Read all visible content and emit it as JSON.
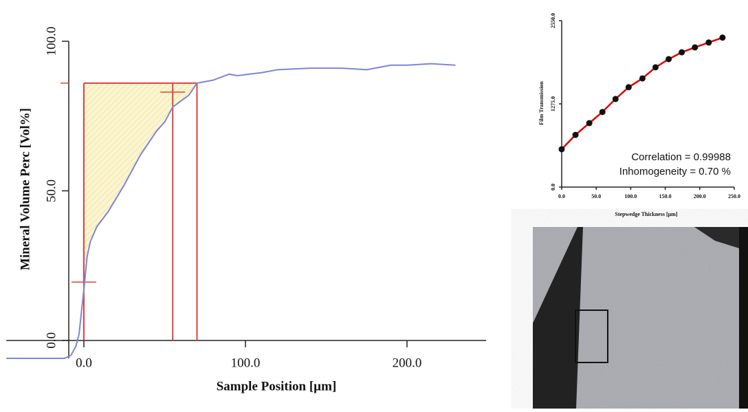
{
  "chart_data": [
    {
      "type": "line",
      "xlabel": "Sample Position [µm]",
      "ylabel": "Mineral Volume Perc [Vol%]",
      "xlim": [
        -48,
        249
      ],
      "ylim": [
        -6,
        100
      ],
      "xticks": [
        {
          "value": 0,
          "label": "0.0"
        },
        {
          "value": 100,
          "label": "100.0"
        },
        {
          "value": 200,
          "label": "200.0"
        }
      ],
      "yticks": [
        {
          "value": 0,
          "label": "0.0"
        },
        {
          "value": 50,
          "label": "50.0"
        },
        {
          "value": 100,
          "label": "100.0"
        }
      ],
      "series": [
        {
          "color": "#7b86d6",
          "x": [
            -48,
            -12,
            -8,
            -5,
            -3,
            0,
            2,
            4,
            8,
            15,
            25,
            35,
            45,
            50,
            55,
            60,
            65,
            70,
            80,
            90,
            95,
            110,
            120,
            140,
            160,
            175,
            190,
            200,
            215,
            230
          ],
          "values": [
            -6,
            -6,
            -5,
            -2,
            2,
            17,
            28,
            33,
            38,
            43,
            52,
            62,
            70,
            73,
            78,
            80,
            82,
            86,
            87,
            89,
            88.5,
            89.5,
            90.5,
            91,
            91,
            90.5,
            92,
            92,
            92.5,
            92
          ]
        }
      ],
      "reference_level": 86,
      "reference_x": [
        0,
        55,
        70
      ],
      "reference_color": "#e04040",
      "shade_color": "#f7eeb0",
      "markers": [
        {
          "x": 0,
          "y": 19.5
        },
        {
          "x": 55,
          "y": 83
        }
      ]
    },
    {
      "type": "scatter",
      "xlabel": "Stepwedge Thickness [µm]",
      "ylabel": "Film Transmission",
      "xlim": [
        0,
        250
      ],
      "ylim": [
        0,
        2550
      ],
      "xticks": [
        {
          "value": 0,
          "label": "0.0"
        },
        {
          "value": 50,
          "label": "50.0"
        },
        {
          "value": 100,
          "label": "100.0"
        },
        {
          "value": 150,
          "label": "150.0"
        },
        {
          "value": 200,
          "label": "200.0"
        },
        {
          "value": 250,
          "label": "250.0"
        }
      ],
      "yticks": [
        {
          "value": 0,
          "label": "0.0"
        },
        {
          "value": 1275,
          "label": "1275.0"
        },
        {
          "value": 2550,
          "label": "2550.0"
        }
      ],
      "series": [
        {
          "color": "#111111",
          "line_color": "#e00000",
          "x": [
            0,
            20,
            40,
            59,
            78,
            97,
            117,
            136,
            155,
            174,
            193,
            213,
            233
          ],
          "values": [
            580,
            800,
            980,
            1150,
            1350,
            1530,
            1665,
            1835,
            1960,
            2065,
            2140,
            2215,
            2290
          ]
        }
      ],
      "annotations": [
        "Correlation = 0.99988",
        "Inhomogeneity = 0.70 %"
      ]
    }
  ]
}
